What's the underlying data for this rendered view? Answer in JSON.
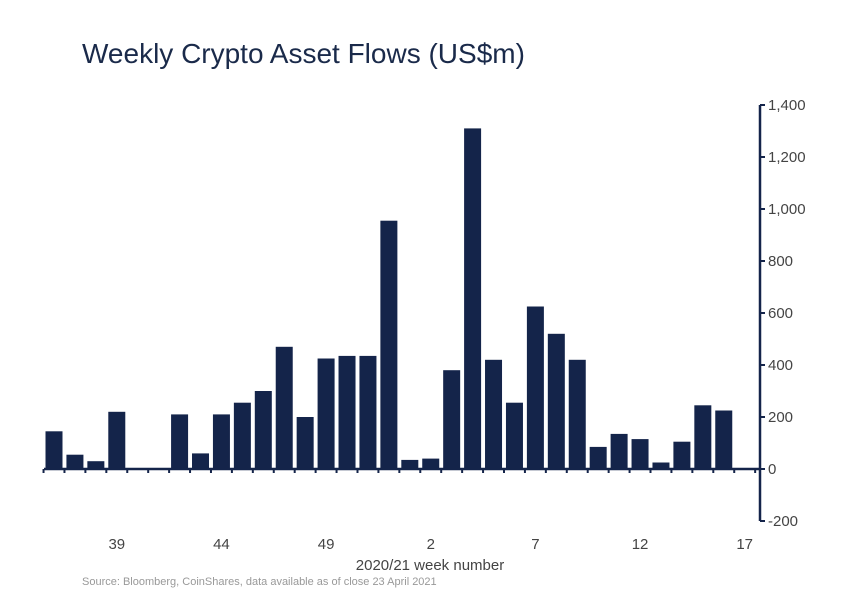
{
  "chart_data": {
    "type": "bar",
    "title": "Weekly Crypto Asset Flows (US$m)",
    "xlabel": "2020/21 week number",
    "ylabel": "",
    "source": "Source: Bloomberg, CoinShares, data available as of close 23 April 2021",
    "categories": [
      "36",
      "37",
      "38",
      "39",
      "40",
      "41",
      "42",
      "43",
      "44",
      "45",
      "46",
      "47",
      "48",
      "49",
      "50",
      "51",
      "52",
      "1",
      "2",
      "3",
      "4",
      "5",
      "6",
      "7",
      "8",
      "9",
      "10",
      "11",
      "12",
      "13",
      "14",
      "15",
      "16",
      "17"
    ],
    "values": [
      145,
      55,
      30,
      220,
      0,
      0,
      210,
      60,
      210,
      255,
      300,
      470,
      200,
      425,
      435,
      435,
      955,
      35,
      40,
      380,
      1310,
      420,
      255,
      625,
      520,
      420,
      85,
      135,
      115,
      25,
      105,
      245,
      225,
      0
    ],
    "xtick_labels": [
      "39",
      "44",
      "49",
      "2",
      "7",
      "12",
      "17"
    ],
    "yticks": [
      -200,
      0,
      200,
      400,
      600,
      800,
      1000,
      1200,
      1400
    ],
    "ytick_labels": [
      "-200",
      "0",
      "200",
      "400",
      "600",
      "800",
      "1,000",
      "1,200",
      "1,400"
    ],
    "ylim": [
      -200,
      1400
    ],
    "y_axis_side": "right",
    "bar_color": "#14244a"
  }
}
